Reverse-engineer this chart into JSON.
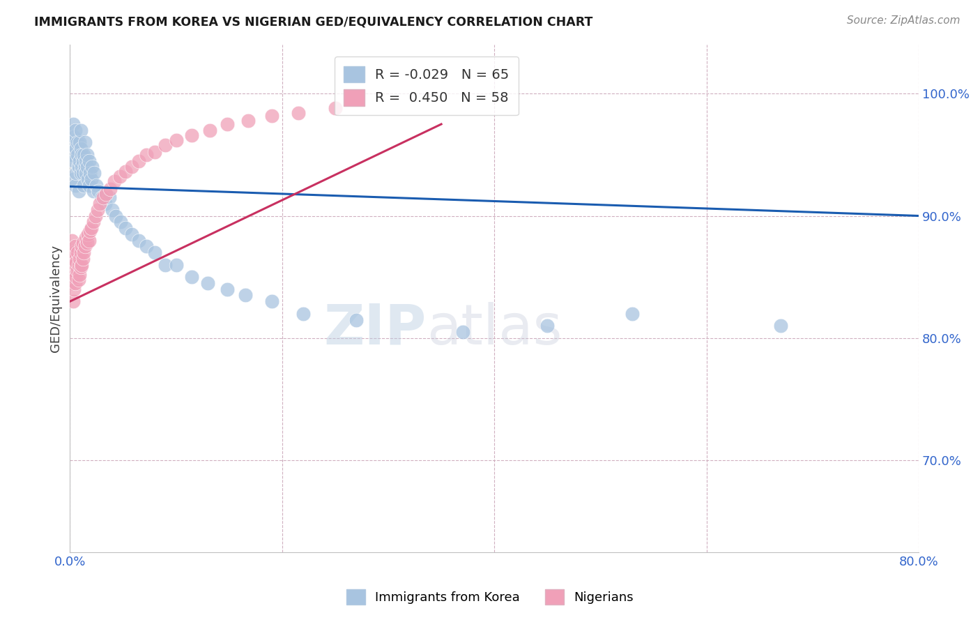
{
  "title": "IMMIGRANTS FROM KOREA VS NIGERIAN GED/EQUIVALENCY CORRELATION CHART",
  "source": "Source: ZipAtlas.com",
  "ylabel": "GED/Equivalency",
  "right_yticks": [
    0.7,
    0.8,
    0.9,
    1.0
  ],
  "right_yticklabels": [
    "70.0%",
    "80.0%",
    "90.0%",
    "100.0%"
  ],
  "xlim": [
    0.0,
    0.8
  ],
  "ylim": [
    0.625,
    1.04
  ],
  "xticks": [
    0.0,
    0.2,
    0.4,
    0.6,
    0.8
  ],
  "xticklabels": [
    "0.0%",
    "",
    "",
    "",
    "80.0%"
  ],
  "korea_color": "#a8c4e0",
  "nigeria_color": "#f0a0b8",
  "korea_line_color": "#1a5cb0",
  "nigeria_line_color": "#c83060",
  "korea_R": -0.029,
  "korea_N": 65,
  "nigeria_R": 0.45,
  "nigeria_N": 58,
  "watermark_zip": "ZIP",
  "watermark_atlas": "atlas",
  "korea_scatter_x": [
    0.001,
    0.002,
    0.003,
    0.003,
    0.004,
    0.004,
    0.005,
    0.005,
    0.006,
    0.006,
    0.007,
    0.007,
    0.008,
    0.008,
    0.009,
    0.009,
    0.01,
    0.01,
    0.01,
    0.011,
    0.011,
    0.012,
    0.012,
    0.013,
    0.013,
    0.014,
    0.014,
    0.015,
    0.015,
    0.016,
    0.016,
    0.017,
    0.018,
    0.018,
    0.019,
    0.02,
    0.021,
    0.022,
    0.023,
    0.025,
    0.027,
    0.03,
    0.033,
    0.037,
    0.04,
    0.043,
    0.048,
    0.052,
    0.058,
    0.065,
    0.072,
    0.08,
    0.09,
    0.1,
    0.115,
    0.13,
    0.148,
    0.165,
    0.19,
    0.22,
    0.27,
    0.37,
    0.45,
    0.53,
    0.67
  ],
  "korea_scatter_y": [
    0.96,
    0.95,
    0.975,
    0.93,
    0.965,
    0.945,
    0.97,
    0.925,
    0.955,
    0.935,
    0.95,
    0.96,
    0.94,
    0.92,
    0.96,
    0.945,
    0.955,
    0.935,
    0.97,
    0.94,
    0.95,
    0.935,
    0.945,
    0.95,
    0.925,
    0.94,
    0.96,
    0.935,
    0.945,
    0.94,
    0.95,
    0.93,
    0.925,
    0.945,
    0.935,
    0.93,
    0.94,
    0.92,
    0.935,
    0.925,
    0.92,
    0.915,
    0.91,
    0.915,
    0.905,
    0.9,
    0.895,
    0.89,
    0.885,
    0.88,
    0.875,
    0.87,
    0.86,
    0.86,
    0.85,
    0.845,
    0.84,
    0.835,
    0.83,
    0.82,
    0.815,
    0.805,
    0.81,
    0.82,
    0.81
  ],
  "nigeria_scatter_x": [
    0.001,
    0.001,
    0.002,
    0.002,
    0.003,
    0.003,
    0.003,
    0.004,
    0.004,
    0.004,
    0.005,
    0.005,
    0.005,
    0.006,
    0.006,
    0.007,
    0.007,
    0.008,
    0.008,
    0.009,
    0.009,
    0.01,
    0.01,
    0.011,
    0.011,
    0.012,
    0.012,
    0.013,
    0.014,
    0.015,
    0.016,
    0.017,
    0.018,
    0.019,
    0.02,
    0.022,
    0.024,
    0.026,
    0.028,
    0.031,
    0.034,
    0.038,
    0.042,
    0.047,
    0.052,
    0.058,
    0.065,
    0.072,
    0.08,
    0.09,
    0.1,
    0.115,
    0.132,
    0.148,
    0.168,
    0.19,
    0.215,
    0.25
  ],
  "nigeria_scatter_y": [
    0.87,
    0.845,
    0.86,
    0.88,
    0.83,
    0.85,
    0.865,
    0.84,
    0.855,
    0.87,
    0.845,
    0.86,
    0.875,
    0.85,
    0.862,
    0.855,
    0.87,
    0.848,
    0.86,
    0.852,
    0.865,
    0.858,
    0.87,
    0.86,
    0.875,
    0.865,
    0.878,
    0.87,
    0.875,
    0.882,
    0.878,
    0.885,
    0.88,
    0.888,
    0.89,
    0.895,
    0.9,
    0.905,
    0.91,
    0.915,
    0.918,
    0.922,
    0.928,
    0.932,
    0.936,
    0.94,
    0.945,
    0.95,
    0.952,
    0.958,
    0.962,
    0.966,
    0.97,
    0.975,
    0.978,
    0.982,
    0.984,
    0.988
  ]
}
